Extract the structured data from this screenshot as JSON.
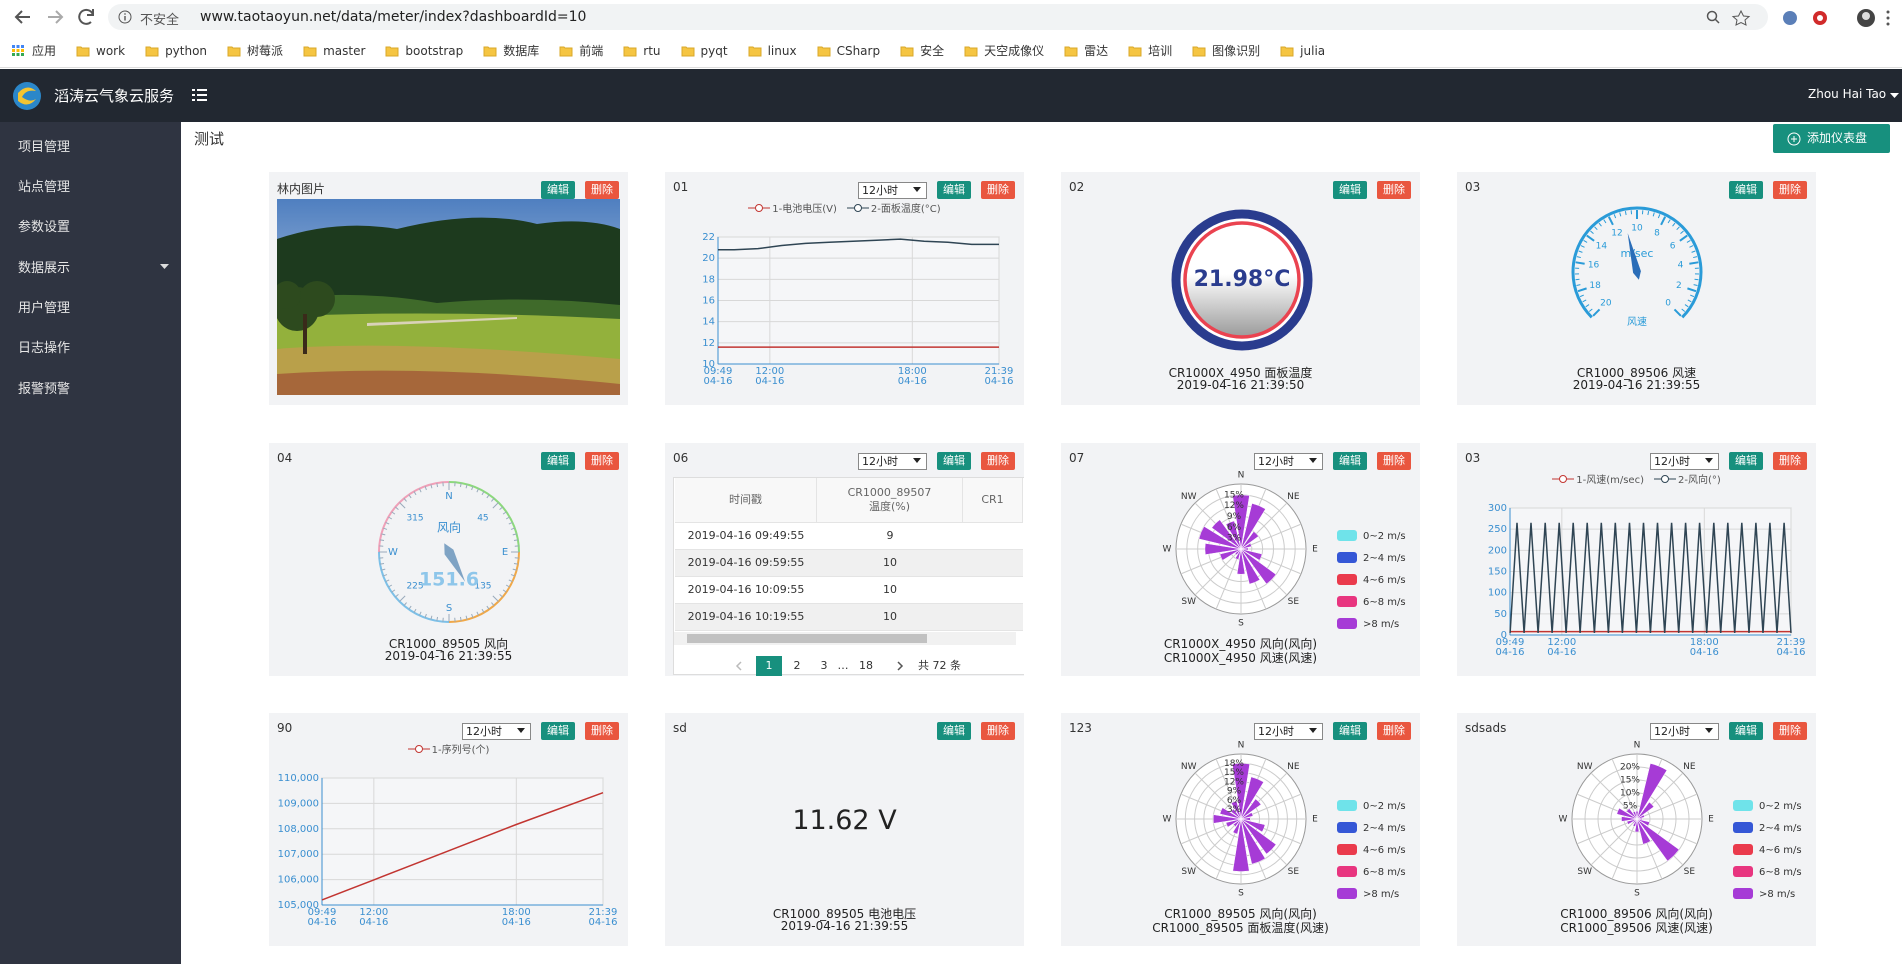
{
  "browser": {
    "security": "不安全",
    "url": "www.taotaoyun.net/data/meter/index?dashboardId=10",
    "bookmarks": [
      "应用",
      "work",
      "python",
      "树莓派",
      "master",
      "bootstrap",
      "数据库",
      "前端",
      "rtu",
      "pyqt",
      "linux",
      "CSharp",
      "安全",
      "天空成像仪",
      "雷达",
      "培训",
      "图像识别",
      "julia"
    ]
  },
  "header": {
    "brand": "滔涛云气象云服务",
    "user": "Zhou Hai Tao"
  },
  "sidebar": [
    "项目管理",
    "站点管理",
    "参数设置",
    "数据展示",
    "用户管理",
    "日志操作",
    "报警预警"
  ],
  "page": {
    "title": "测试",
    "add_button": "添加仪表盘"
  },
  "buttons": {
    "edit": "编辑",
    "delete": "删除"
  },
  "panels": [
    {
      "title": "林内图片",
      "chart": {
        "type": "image"
      }
    },
    {
      "title": "01",
      "range": "12小时",
      "chart": {
        "type": "line",
        "x": [
          9.817,
          10.5,
          11.5,
          12.5,
          13.5,
          14.5,
          15.5,
          16.5,
          17.5,
          18.5,
          19.5,
          20.5,
          21,
          21.65
        ],
        "xlim": [
          9.817,
          21.65
        ],
        "xticks": [
          {
            "value": 9.817,
            "label": "09:49\n04-16"
          },
          {
            "value": 12,
            "label": "12:00\n04-16"
          },
          {
            "value": 18,
            "label": "18:00\n04-16"
          },
          {
            "value": 21.65,
            "label": "21:39\n04-16"
          }
        ],
        "ylim": [
          10,
          22
        ],
        "yticks": [
          10,
          12,
          14,
          16,
          18,
          20,
          22
        ],
        "series": [
          {
            "name": "1-电池电压(V)",
            "color": "#c23531",
            "values": [
              11.6,
              11.6,
              11.6,
              11.6,
              11.6,
              11.6,
              11.6,
              11.6,
              11.6,
              11.6,
              11.6,
              11.6,
              11.6,
              11.6
            ]
          },
          {
            "name": "2-面板温度(°C)",
            "color": "#2f4554",
            "values": [
              20.8,
              20.8,
              20.9,
              21.2,
              21.4,
              21.5,
              21.6,
              21.7,
              21.8,
              21.6,
              21.5,
              21.3,
              21.3,
              21.3
            ]
          }
        ]
      }
    },
    {
      "title": "02",
      "chart": {
        "type": "thermo",
        "text": "21.98°C",
        "caption": [
          "CR1000X_4950 面板温度",
          "2019-04-16 21:39:50"
        ]
      }
    },
    {
      "title": "03",
      "chart": {
        "type": "gauge",
        "value": 11,
        "ylim": [
          0,
          20
        ],
        "yticks": [
          0,
          2,
          4,
          6,
          8,
          10,
          12,
          14,
          16,
          18,
          20
        ],
        "unit": "m/sec",
        "label": "风速",
        "caption": [
          "CR1000_89506 风速",
          "2019-04-16 21:39:55"
        ]
      }
    },
    {
      "title": "04",
      "chart": {
        "type": "compass",
        "value": 151.6,
        "label": "风向",
        "directions": [
          "N",
          "E",
          "S",
          "W"
        ],
        "degree_ticks": [
          45,
          135,
          225,
          315
        ],
        "caption": [
          "CR1000_89505 风向",
          "2019-04-16 21:39:55"
        ]
      }
    },
    {
      "title": "06",
      "range": "12小时",
      "chart": {
        "type": "table",
        "headers": [
          "时间戳",
          "CR1000_89507\n温度(%)",
          "CR1"
        ],
        "rows": [
          [
            "2019-04-16 09:49:55",
            "9"
          ],
          [
            "2019-04-16 09:59:55",
            "10"
          ],
          [
            "2019-04-16 10:09:55",
            "10"
          ],
          [
            "2019-04-16 10:19:55",
            "10"
          ]
        ],
        "pages": [
          "1",
          "2",
          "3",
          "…",
          "18"
        ],
        "total": "共 72 条"
      }
    },
    {
      "title": "07",
      "range": "12小时",
      "chart": {
        "type": "rose",
        "directions": [
          "N",
          "NE",
          "E",
          "SE",
          "S",
          "SW",
          "W",
          "NW"
        ],
        "rlim": [
          0,
          18
        ],
        "rticks": [
          {
            "value": 3,
            "label": "3%"
          },
          {
            "value": 6,
            "label": "6%"
          },
          {
            "value": 9,
            "label": "9%"
          },
          {
            "value": 12,
            "label": "12%"
          },
          {
            "value": 15,
            "label": "15%"
          }
        ],
        "series": [
          {
            "name": "0~2 m/s",
            "color": "#6fe3ea",
            "values": [
              0,
              0,
              0,
              0,
              0,
              0,
              0,
              0,
              0,
              0,
              0,
              0,
              0,
              0,
              0,
              0
            ]
          },
          {
            "name": "2~4 m/s",
            "color": "#3557d6",
            "values": [
              0,
              0,
              0,
              0,
              0,
              0,
              0,
              0,
              0,
              0,
              0,
              0,
              0,
              0,
              0,
              0
            ]
          },
          {
            "name": "4~6 m/s",
            "color": "#ea3a4c",
            "values": [
              0,
              0,
              0,
              0,
              0,
              0,
              0,
              0,
              0,
              0,
              0,
              0,
              0,
              0,
              0,
              0
            ]
          },
          {
            "name": "6~8 m/s",
            "color": "#e8357f",
            "values": [
              0,
              0,
              0,
              0,
              0,
              0,
              0,
              0,
              0,
              0,
              0,
              0,
              0,
              0,
              0,
              0
            ]
          },
          {
            "name": ">8 m/s",
            "color": "#a63bd6",
            "values": [
              15,
              13,
              6,
              3,
              2,
              6,
              12,
              10,
              7,
              3,
              2,
              6,
              10,
              12,
              10,
              8
            ]
          }
        ],
        "caption": [
          "CR1000X_4950 风向(风向)",
          "CR1000X_4950 风速(风速)"
        ]
      }
    },
    {
      "title": "03",
      "range": "12小时",
      "chart": {
        "type": "line",
        "x": [
          9.82,
          10.11,
          10.41,
          10.7,
          11.0,
          11.3,
          11.59,
          11.89,
          12.18,
          12.48,
          12.77,
          13.07,
          13.37,
          13.66,
          13.96,
          14.25,
          14.55,
          14.85,
          15.14,
          15.44,
          15.73,
          16.03,
          16.33,
          16.62,
          16.92,
          17.21,
          17.51,
          17.8,
          18.1,
          18.4,
          18.69,
          18.99,
          19.28,
          19.58,
          19.88,
          20.17,
          20.47,
          20.76,
          21.06,
          21.36,
          21.65
        ],
        "xlim": [
          9.817,
          21.65
        ],
        "xticks": [
          {
            "value": 9.817,
            "label": "09:49\n04-16"
          },
          {
            "value": 12,
            "label": "12:00\n04-16"
          },
          {
            "value": 18,
            "label": "18:00\n04-16"
          },
          {
            "value": 21.65,
            "label": "21:39\n04-16"
          }
        ],
        "ylim": [
          0,
          300
        ],
        "yticks": [
          0,
          50,
          100,
          150,
          200,
          250,
          300
        ],
        "series": [
          {
            "name": "1-风速(m/sec)",
            "color": "#c23531",
            "values": [
              8,
              8,
              8,
              8,
              8,
              8,
              8,
              8,
              8,
              8,
              8,
              8,
              8,
              8,
              8,
              8,
              8,
              8,
              8,
              8,
              8,
              8,
              8,
              8,
              8,
              8,
              8,
              8,
              8,
              8,
              8,
              8,
              8,
              8,
              8,
              8,
              8,
              8,
              8,
              8,
              8
            ]
          },
          {
            "name": "2-风向(°)",
            "color": "#2f4554",
            "values": [
              5,
              265,
              5,
              265,
              5,
              265,
              5,
              265,
              5,
              265,
              5,
              265,
              5,
              265,
              5,
              265,
              5,
              265,
              5,
              265,
              5,
              265,
              5,
              265,
              5,
              265,
              5,
              265,
              5,
              265,
              5,
              265,
              5,
              265,
              5,
              265,
              5,
              265,
              5,
              265,
              5
            ]
          }
        ]
      }
    },
    {
      "title": "90",
      "range": "12小时",
      "chart": {
        "type": "line",
        "x": [
          9.817,
          12,
          15,
          18,
          21.65
        ],
        "xlim": [
          9.817,
          21.65
        ],
        "xticks": [
          {
            "value": 9.817,
            "label": "09:49\n04-16"
          },
          {
            "value": 12,
            "label": "12:00\n04-16"
          },
          {
            "value": 18,
            "label": "18:00\n04-16"
          },
          {
            "value": 21.65,
            "label": "21:39\n04-16"
          }
        ],
        "ylim": [
          105000,
          110000
        ],
        "yticks": [
          {
            "value": 105000,
            "label": "105,000"
          },
          {
            "value": 106000,
            "label": "106,000"
          },
          {
            "value": 107000,
            "label": "107,000"
          },
          {
            "value": 108000,
            "label": "108,000"
          },
          {
            "value": 109000,
            "label": "109,000"
          },
          {
            "value": 110000,
            "label": "110,000"
          }
        ],
        "series": [
          {
            "name": "1-序列号(个)",
            "color": "#c23531",
            "values": [
              105200,
              105990,
              107080,
              108170,
              109420
            ]
          }
        ]
      }
    },
    {
      "title": "sd",
      "chart": {
        "type": "display",
        "text": "11.62 V",
        "caption": [
          "CR1000_89505 电池电压",
          "2019-04-16 21:39:55"
        ]
      }
    },
    {
      "title": "123",
      "range": "12小时",
      "chart": {
        "type": "rose",
        "directions": [
          "N",
          "NE",
          "E",
          "SE",
          "S",
          "SW",
          "W",
          "NW"
        ],
        "rlim": [
          0,
          21
        ],
        "rticks": [
          {
            "value": 3,
            "label": "3%"
          },
          {
            "value": 6,
            "label": "6%"
          },
          {
            "value": 9,
            "label": "9%"
          },
          {
            "value": 12,
            "label": "12%"
          },
          {
            "value": 15,
            "label": "15%"
          },
          {
            "value": 18,
            "label": "18%"
          }
        ],
        "series": [
          {
            "name": "0~2 m/s",
            "color": "#6fe3ea",
            "values": [
              0,
              0,
              0,
              0,
              0,
              0,
              0,
              0,
              0,
              0,
              0,
              0,
              0,
              0,
              0,
              0
            ]
          },
          {
            "name": "2~4 m/s",
            "color": "#3557d6",
            "values": [
              0,
              0,
              0,
              0,
              0,
              0,
              0,
              0,
              0,
              0,
              0,
              0,
              0,
              0,
              0,
              0
            ]
          },
          {
            "name": "4~6 m/s",
            "color": "#ea3a4c",
            "values": [
              0,
              0,
              0,
              0,
              0,
              0,
              0,
              0,
              0,
              0,
              0,
              0,
              0,
              0,
              0,
              0
            ]
          },
          {
            "name": "6~8 m/s",
            "color": "#e8357f",
            "values": [
              0,
              0,
              0,
              0,
              0,
              0,
              0,
              0,
              0,
              0,
              0,
              0,
              0,
              0,
              0,
              0
            ]
          },
          {
            "name": ">8 m/s",
            "color": "#a63bd6",
            "values": [
              18,
              14,
              8,
              4,
              3,
              8,
              14,
              15,
              17,
              5,
              3,
              5,
              9,
              7,
              4,
              6
            ]
          }
        ],
        "caption": [
          "CR1000_89505 风向(风向)",
          "CR1000_89505 面板温度(风速)"
        ]
      }
    },
    {
      "title": "sdsads",
      "range": "12小时",
      "chart": {
        "type": "rose",
        "directions": [
          "N",
          "NE",
          "E",
          "SE",
          "S",
          "SW",
          "W",
          "NW"
        ],
        "rlim": [
          0,
          25
        ],
        "rticks": [
          {
            "value": 5,
            "label": "5%"
          },
          {
            "value": 10,
            "label": "10%"
          },
          {
            "value": 15,
            "label": "15%"
          },
          {
            "value": 20,
            "label": "20%"
          }
        ],
        "series": [
          {
            "name": "0~2 m/s",
            "color": "#6fe3ea",
            "values": [
              0,
              0,
              0,
              0,
              0,
              0,
              0,
              0,
              0,
              0,
              0,
              0,
              0,
              0,
              0,
              0
            ]
          },
          {
            "name": "2~4 m/s",
            "color": "#3557d6",
            "values": [
              0,
              0,
              0,
              0,
              0,
              0,
              0,
              0,
              0,
              0,
              0,
              0,
              0,
              0,
              0,
              0
            ]
          },
          {
            "name": "4~6 m/s",
            "color": "#ea3a4c",
            "values": [
              0,
              0,
              0,
              0,
              0,
              0,
              0,
              0,
              0,
              0,
              0,
              0,
              0,
              0,
              0,
              0
            ]
          },
          {
            "name": "6~8 m/s",
            "color": "#e8357f",
            "values": [
              0,
              0,
              0,
              0,
              0,
              0,
              0,
              0,
              0,
              0,
              0,
              0,
              0,
              0,
              0,
              0
            ]
          },
          {
            "name": ">8 m/s",
            "color": "#a63bd6",
            "values": [
              3,
              22,
              8,
              3,
              2,
              5,
              20,
              10,
              5,
              3,
              2,
              4,
              6,
              8,
              5,
              3
            ]
          }
        ],
        "caption": [
          "CR1000_89506 风向(风向)",
          "CR1000_89506 风速(风速)"
        ]
      }
    }
  ]
}
